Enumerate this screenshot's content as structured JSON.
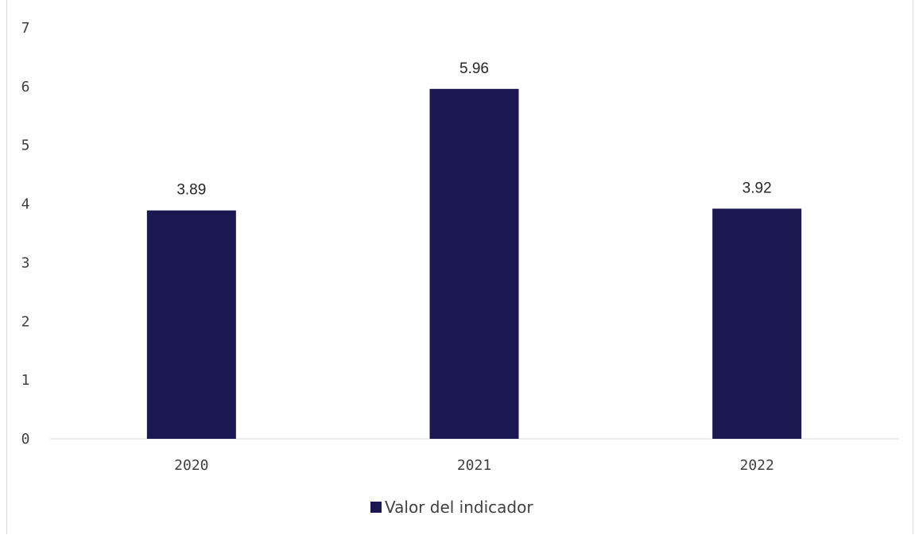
{
  "chart_data": {
    "type": "bar",
    "categories": [
      "2020",
      "2021",
      "2022"
    ],
    "series": [
      {
        "name": "Valor del indicador",
        "values": [
          3.89,
          5.96,
          3.92
        ]
      }
    ],
    "data_labels": [
      "3.89",
      "5.96",
      "3.92"
    ],
    "ylim": [
      0,
      7
    ],
    "yticks": [
      0,
      1,
      2,
      3,
      4,
      5,
      6,
      7
    ],
    "grid": false,
    "legend_position": "bottom",
    "bar_color": "#1b1751",
    "axis_color": "#d9d9d9"
  }
}
